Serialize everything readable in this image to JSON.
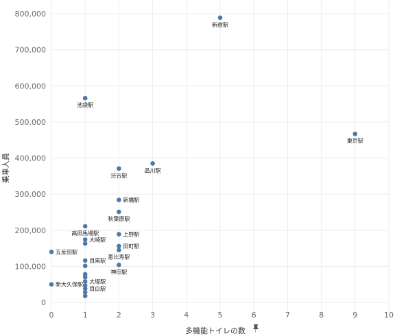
{
  "chart_data": {
    "type": "scatter",
    "title": "",
    "xlabel": "多機能トイレの数",
    "ylabel": "乗車人員",
    "xlim": [
      0,
      10
    ],
    "ylim": [
      0,
      850000
    ],
    "x_ticks": [
      "0",
      "1",
      "2",
      "3",
      "4",
      "5",
      "6",
      "7",
      "8",
      "9",
      "10"
    ],
    "y_ticks": [
      {
        "value": 0,
        "label": "0"
      },
      {
        "value": 100000,
        "label": "100,000"
      },
      {
        "value": 200000,
        "label": "200,000"
      },
      {
        "value": 300000,
        "label": "300,000"
      },
      {
        "value": 400000,
        "label": "400,000"
      },
      {
        "value": 500000,
        "label": "500,000"
      },
      {
        "value": 600000,
        "label": "600,000"
      },
      {
        "value": 700000,
        "label": "700,000"
      },
      {
        "value": 800000,
        "label": "800,000"
      }
    ],
    "grid": true,
    "marker_color": "#4e79a7",
    "points": [
      {
        "x": 5,
        "y": 789000,
        "label": "新宿駅",
        "anchor": "below"
      },
      {
        "x": 1,
        "y": 566000,
        "label": "池袋駅",
        "anchor": "below"
      },
      {
        "x": 9,
        "y": 467000,
        "label": "東京駅",
        "anchor": "below"
      },
      {
        "x": 3,
        "y": 385000,
        "label": "品川駅",
        "anchor": "below"
      },
      {
        "x": 2,
        "y": 371000,
        "label": "渋谷駅",
        "anchor": "below"
      },
      {
        "x": 2,
        "y": 284000,
        "label": "新橋駅",
        "anchor": "right"
      },
      {
        "x": 2,
        "y": 251000,
        "label": "秋葉原駅",
        "anchor": "below"
      },
      {
        "x": 1,
        "y": 211000,
        "label": "高田馬場駅",
        "anchor": "below"
      },
      {
        "x": 2,
        "y": 189000,
        "label": "上野駅",
        "anchor": "right"
      },
      {
        "x": 1,
        "y": 174000,
        "label": "大崎駅",
        "anchor": "right"
      },
      {
        "x": 1,
        "y": 163000,
        "label": "",
        "anchor": "none"
      },
      {
        "x": 2,
        "y": 156000,
        "label": "田町駅",
        "anchor": "right"
      },
      {
        "x": 2,
        "y": 145000,
        "label": "恵比寿駅",
        "anchor": "below"
      },
      {
        "x": 0,
        "y": 140000,
        "label": "五反田駅",
        "anchor": "right"
      },
      {
        "x": 1,
        "y": 116000,
        "label": "目黒駅",
        "anchor": "right"
      },
      {
        "x": 2,
        "y": 104000,
        "label": "神田駅",
        "anchor": "below"
      },
      {
        "x": 1,
        "y": 101000,
        "label": "",
        "anchor": "none"
      },
      {
        "x": 1,
        "y": 78000,
        "label": "",
        "anchor": "none"
      },
      {
        "x": 1,
        "y": 70000,
        "label": "",
        "anchor": "none"
      },
      {
        "x": 1,
        "y": 58000,
        "label": "大塚駅",
        "anchor": "right"
      },
      {
        "x": 0,
        "y": 50000,
        "label": "新大久保駅",
        "anchor": "right"
      },
      {
        "x": 1,
        "y": 47000,
        "label": "",
        "anchor": "none"
      },
      {
        "x": 1,
        "y": 38000,
        "label": "目白駅",
        "anchor": "right"
      },
      {
        "x": 1,
        "y": 28000,
        "label": "",
        "anchor": "none"
      },
      {
        "x": 1,
        "y": 18000,
        "label": "",
        "anchor": "none"
      }
    ]
  },
  "ui": {
    "pin_icon": "pin-icon"
  }
}
